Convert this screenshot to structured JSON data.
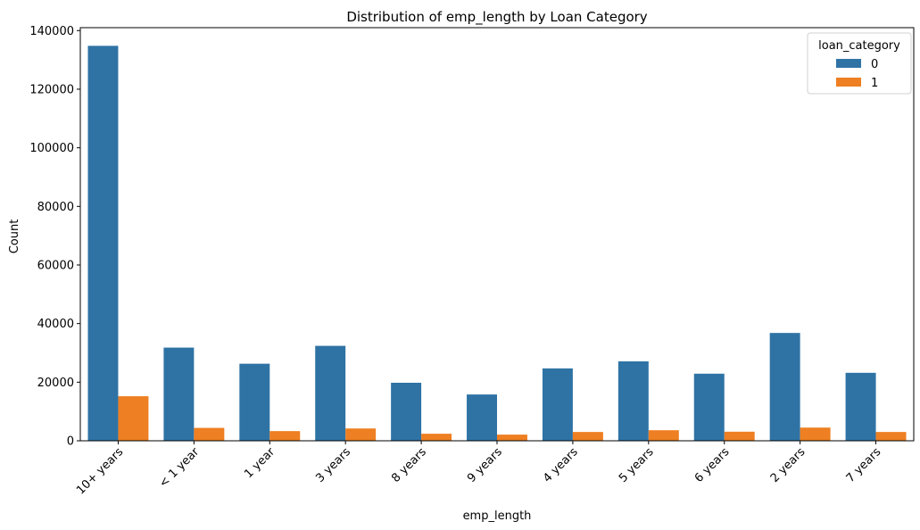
{
  "chart_data": {
    "type": "bar",
    "title": "Distribution of emp_length by Loan Category",
    "xlabel": "emp_length",
    "ylabel": "Count",
    "categories": [
      "10+ years",
      "< 1 year",
      "1 year",
      "3 years",
      "8 years",
      "9 years",
      "4 years",
      "5 years",
      "6 years",
      "2 years",
      "7 years"
    ],
    "series": [
      {
        "name": "0",
        "color": "#2f73a5",
        "values": [
          134800,
          31800,
          26300,
          32400,
          19800,
          15800,
          24700,
          27100,
          22900,
          36800,
          23200
        ]
      },
      {
        "name": "1",
        "color": "#ee7f22",
        "values": [
          15200,
          4400,
          3300,
          4200,
          2400,
          2100,
          3000,
          3600,
          3100,
          4500,
          3000
        ]
      }
    ],
    "ylim": [
      0,
      141000
    ],
    "yticks": [
      0,
      20000,
      40000,
      60000,
      80000,
      100000,
      120000,
      140000
    ],
    "ytick_labels": [
      "0",
      "20000",
      "40000",
      "60000",
      "80000",
      "100000",
      "120000",
      "140000"
    ],
    "legend": {
      "title": "loan_category",
      "placement": "top-right"
    },
    "grid": false
  }
}
